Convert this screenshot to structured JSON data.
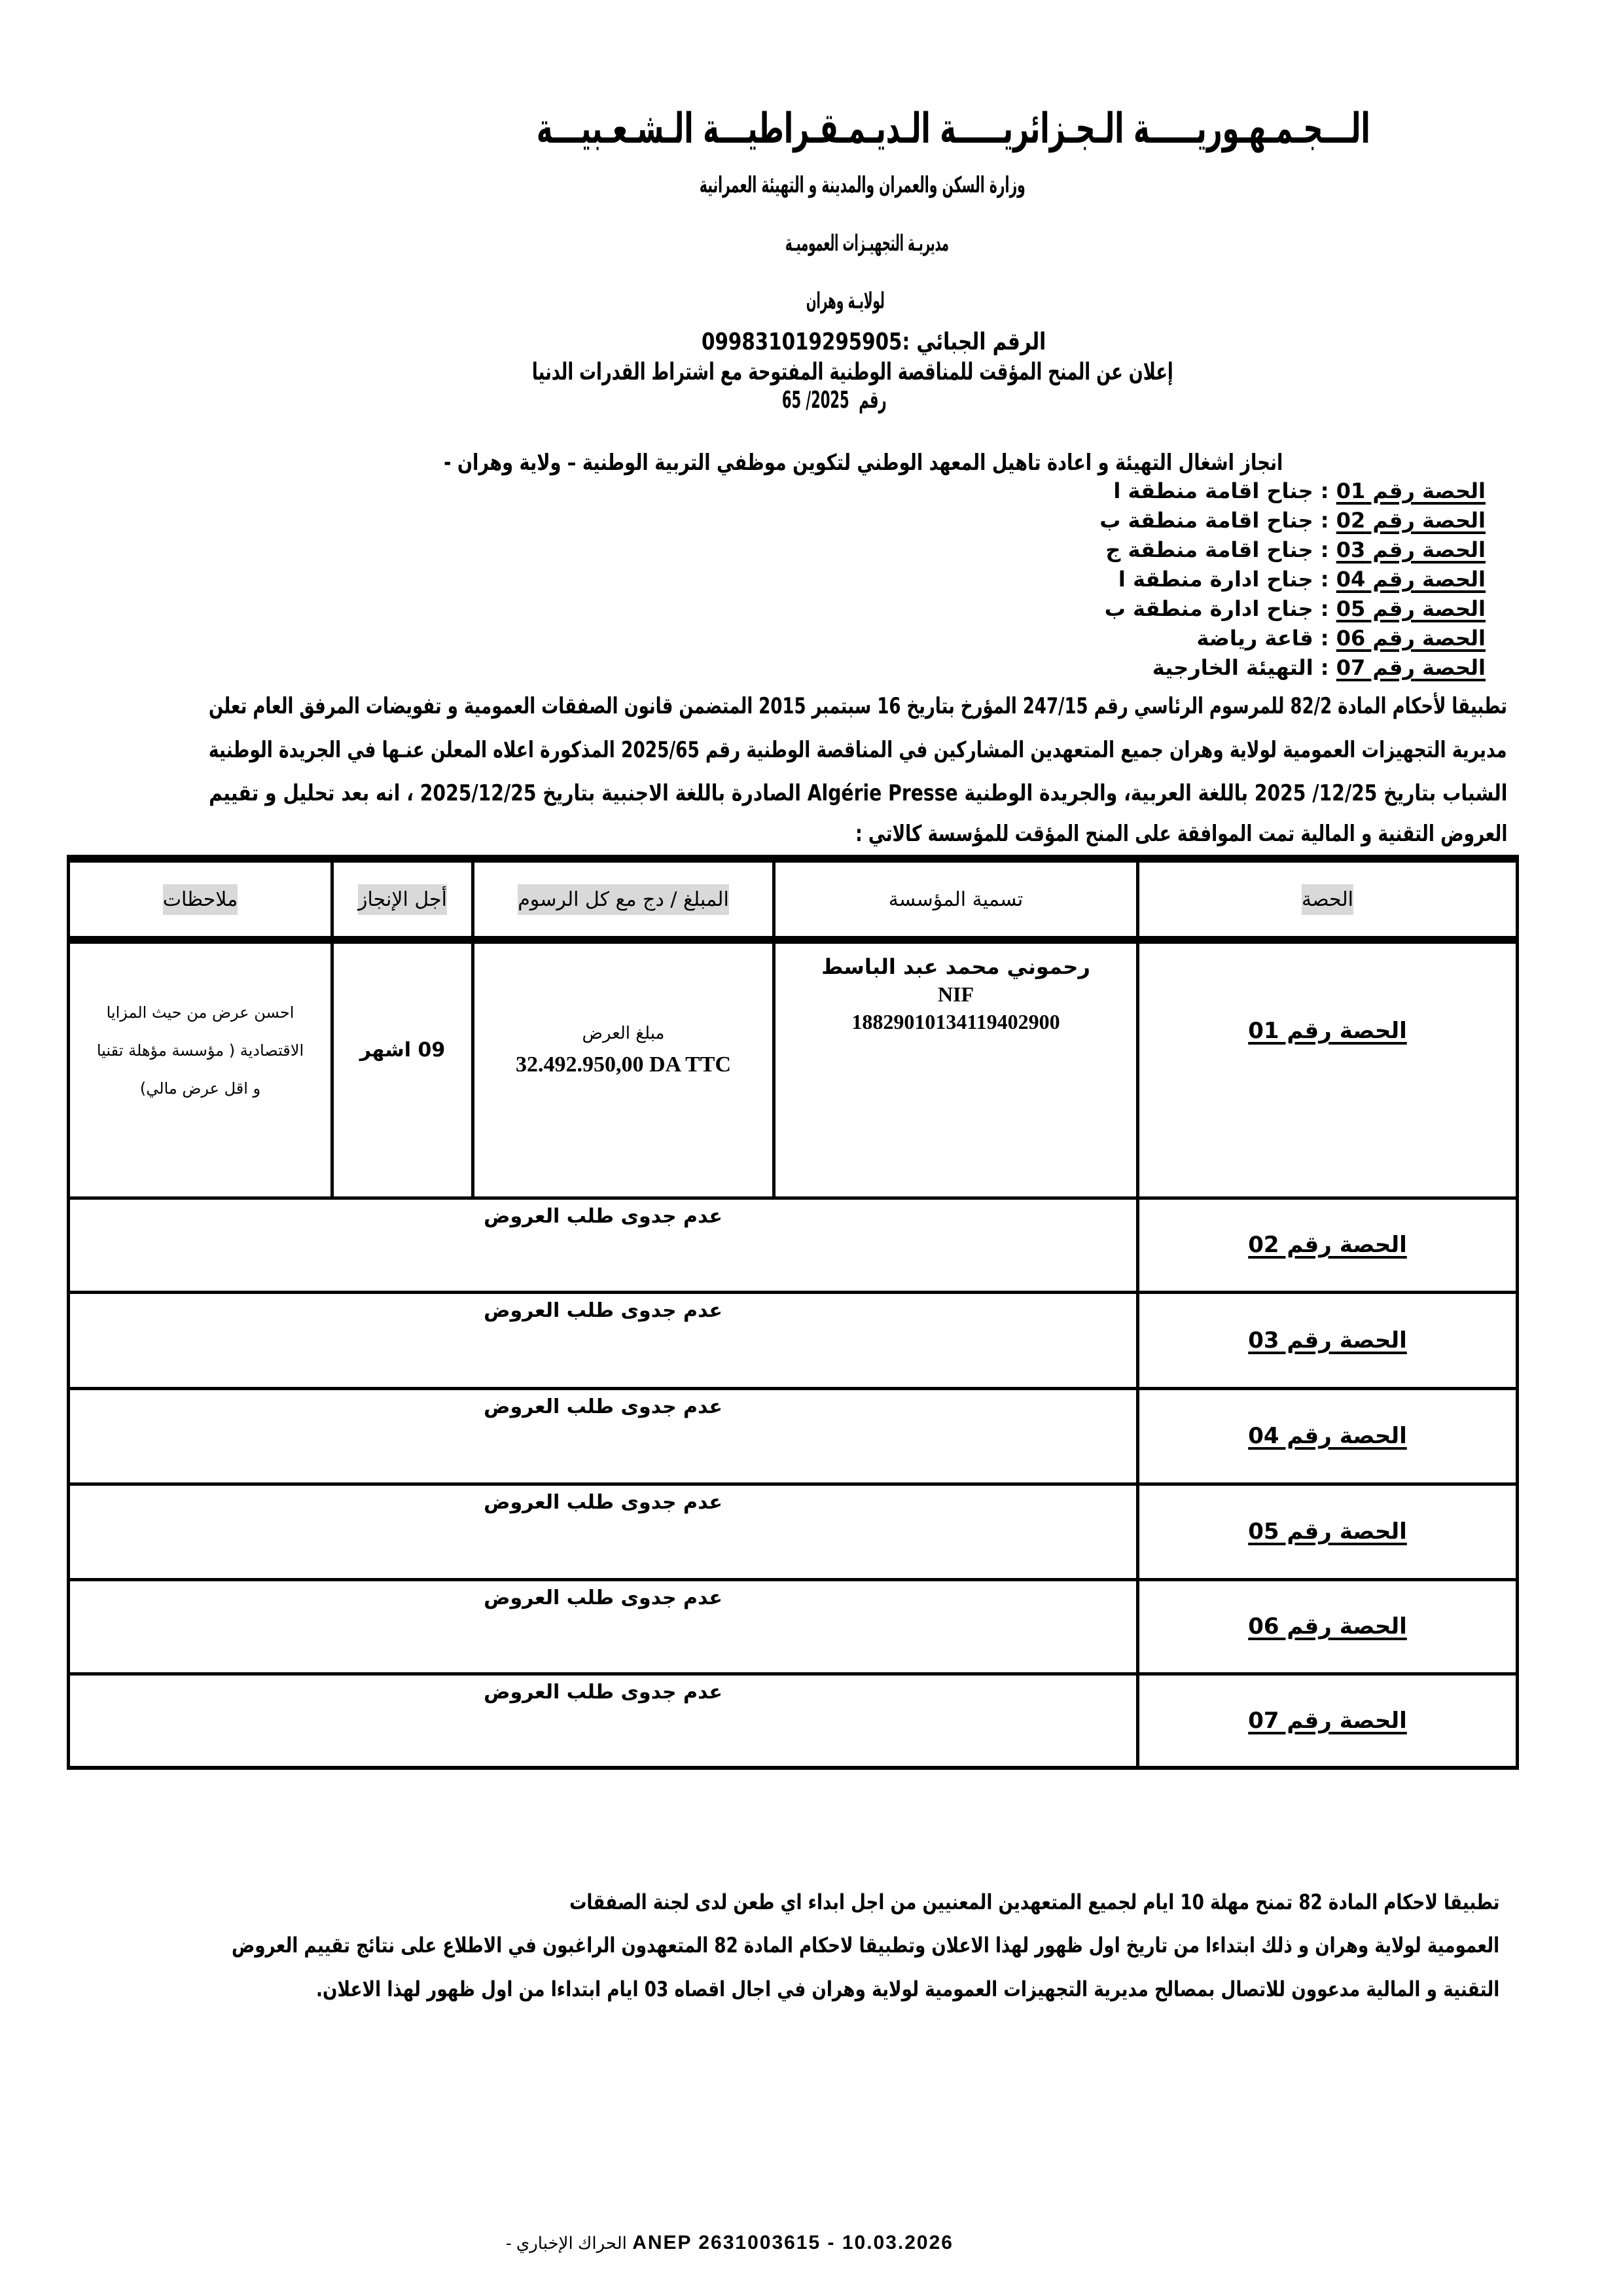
{
  "header": {
    "republic": "الـــجـمـهـوريـــــة الـجـزائريـــــة الـديـمـقـراطيـــة الـشـعـبيـــة",
    "ministry": "وزارة السكن والعمران والمدينة و التهيئة العمرانية",
    "directorate": "مديريـة التجهيـزات العموميـة",
    "wilaya": "لولايـة وهران",
    "fiscal_label": "الرقم الجبائي :",
    "fiscal_number": "099831019295905",
    "announcement": "إعلان عن المنح المؤقت للمناقصة الوطنية المفتوحة مع اشتراط القدرات الدنيا",
    "number_label": "رقم",
    "number_value": "65 /2025"
  },
  "project": "انجاز اشغال التهيئة و اعادة تاهيل المعهد الوطني لتكوين موظفي التربية الوطنية – ولاية وهران -",
  "lots": [
    {
      "label": "الحصة رقم 01",
      "desc": ": جناح اقامة منطقة ا"
    },
    {
      "label": "الحصة رقم  02",
      "desc": ": جناح اقامة منطقة ب"
    },
    {
      "label": "الحصة رقم 03",
      "desc": ": جناح اقامة منطقة ج"
    },
    {
      "label": "الحصة رقم 04",
      "desc": ": جناح ادارة منطقة ا"
    },
    {
      "label": "الحصة رقم 05",
      "desc": ": جناح ادارة منطقة ب"
    },
    {
      "label": "الحصة رقم 06",
      "desc": ": قاعة رياضة"
    },
    {
      "label": "الحصة رقم 07",
      "desc": ": التهيئة الخارجية"
    }
  ],
  "paragraph": [
    "تطبيقا لأحكام المادة 82/2 للمرسوم الرئاسي رقم 247/15 المؤرخ بتاريخ 16 سبتمبر 2015 المتضمن قانون الصفقات العمومية و تفويضات المرفق العام تعلن",
    "مديرية  التجهيزات العمومية لولاية وهران جميع المتعهدين المشاركين في المناقصة الوطنية رقم 2025/65 المذكورة اعلاه المعلن عنـها  في الجريدة الوطنية",
    "الشباب بتاريخ 12/25/ 2025 باللغة العربية، والجريدة الوطنية Algérie Presse الصادرة باللغة الاجنبية بتاريخ 2025/12/25 ، انه بعد تحليل و تقييم",
    "العروض التقنية و المالية تمت الموافقة على المنح المؤقت للمؤسسة كالاتي :"
  ],
  "table": {
    "headers": [
      "الحصة",
      "تسمية المؤسسة",
      "المبلغ  /  دج مع كل الرسوم",
      "أجل الإنجاز",
      "ملاحظات"
    ],
    "row1": {
      "lot": "الحصة رقم 01",
      "company": "رحموني محمد عبد الباسط",
      "nif_label": "NIF",
      "nif": "18829010134119402900",
      "amount_label": "مبلغ العرض",
      "amount": "32.492.950,00 DA TTC",
      "duration": "09 اشهر",
      "remarks": [
        "احسن عرض من حيث المزايا",
        "الاقتصادية ( مؤسسة مؤهلة تقنيا",
        "و اقل عرض مالي)"
      ]
    },
    "unsuccessful_rows": [
      {
        "lot": "الحصة رقم 02",
        "status": "عدم جدوى طلب العروض"
      },
      {
        "lot": "الحصة رقم 03",
        "status": "عدم جدوى طلب العروض"
      },
      {
        "lot": "الحصة رقم 04",
        "status": "عدم جدوى طلب العروض"
      },
      {
        "lot": "الحصة رقم 05",
        "status": "عدم جدوى طلب العروض"
      },
      {
        "lot": "الحصة رقم 06",
        "status": "عدم جدوى طلب العروض"
      },
      {
        "lot": "الحصة رقم 07",
        "status": "عدم جدوى طلب العروض"
      }
    ]
  },
  "footer_paragraph": [
    "تطبيقا لاحكام المادة 82 تمنح مهلة 10 ايام لجميع المتعهدين المعنيين من اجل ابداء اي طعن لدى لجنة الصفقات",
    "العمومية لولاية وهران و ذلك ابتداءا من تاريخ اول ظهور لهذا الاعلان وتطبيقا لاحكام المادة 82 المتعهدون الراغبون في الاطلاع على نتائج تقييم العروض",
    "التقنية و المالية مدعوون للاتصال بمصالح مديرية التجهيزات العمومية لولاية وهران في اجال اقصاه 03 ايام ابتداءا من اول ظهور لهذا الاعلان."
  ],
  "stamp": {
    "anep": "ANEP 2631003615 - 10.03.2026",
    "source": "- الحراك الإخباري"
  }
}
